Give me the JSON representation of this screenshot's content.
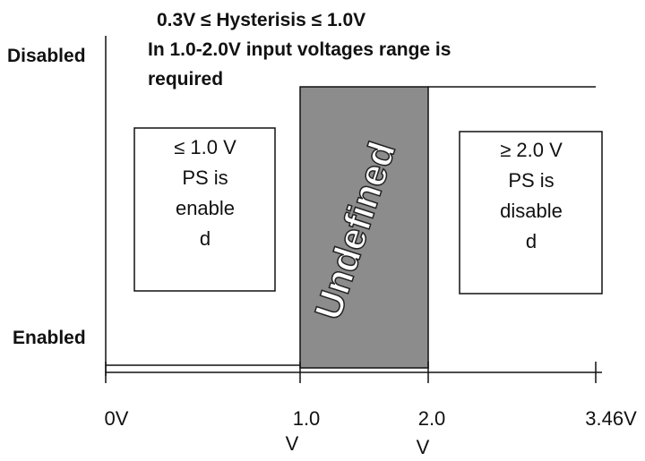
{
  "title_lines": [
    "0.3V ≤ Hysterisis ≤ 1.0V",
    "In 1.0-2.0V input voltages range is",
    "required"
  ],
  "y_labels": {
    "top": "Disabled",
    "bottom": "Enabled"
  },
  "region_label": "Undefined",
  "left_box": {
    "lines": [
      "≤ 1.0 V",
      "PS is",
      "enable",
      "d"
    ]
  },
  "right_box": {
    "lines": [
      "≥ 2.0 V",
      "PS is",
      "disable",
      "d"
    ]
  },
  "x_labels": [
    {
      "lines": [
        "0V"
      ]
    },
    {
      "lines": [
        "1.0",
        "V"
      ]
    },
    {
      "lines": [
        "2.0",
        "V"
      ]
    },
    {
      "lines": [
        "3.46V"
      ]
    }
  ]
}
